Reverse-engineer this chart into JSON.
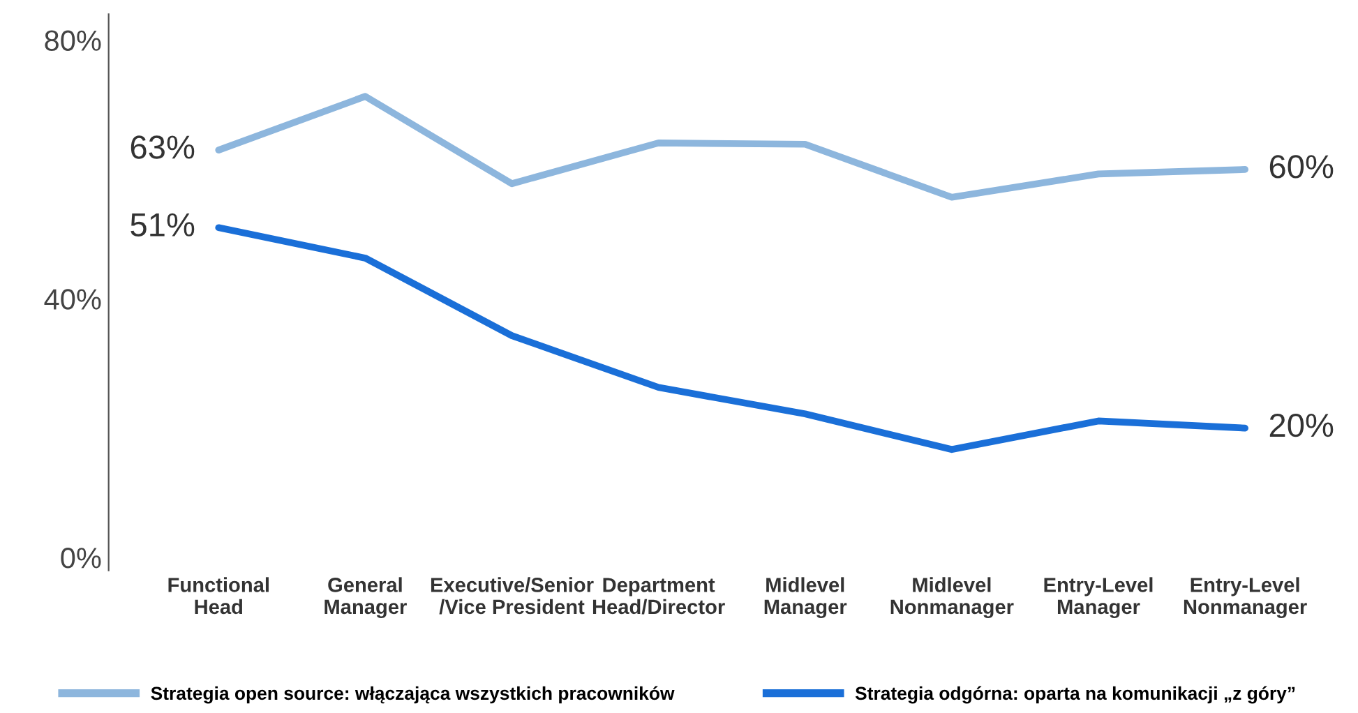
{
  "chart_data": {
    "type": "line",
    "categories": [
      "Functional\nHead",
      "General\nManager",
      "Executive/Senior\n/Vice President",
      "Department\nHead/Director",
      "Midlevel\nManager",
      "Midlevel\nNonmanager",
      "Entry-Level\nManager",
      "Entry-Level\nNonmanager"
    ],
    "series": [
      {
        "name": "Strategia open source: włączająca wszystkich pracowników",
        "color": "#8db6dd",
        "values": [
          63,
          71.3,
          57.8,
          64.1,
          63.9,
          55.7,
          59.3,
          60
        ],
        "value_labels": [
          "63%",
          null,
          null,
          null,
          null,
          null,
          null,
          "60%"
        ]
      },
      {
        "name": "Strategia odgórna: oparta na komunikacji „z góry”",
        "color": "#1a6fd8",
        "values": [
          51,
          46.3,
          34.3,
          26.3,
          22.2,
          16.7,
          21.1,
          20
        ],
        "value_labels": [
          "51%",
          null,
          null,
          null,
          null,
          null,
          null,
          "20%"
        ]
      }
    ],
    "ylim": [
      -2,
      84
    ],
    "yticks": [
      {
        "value": 0,
        "label": "0%"
      },
      {
        "value": 40,
        "label": "40%"
      },
      {
        "value": 80,
        "label": "80%"
      }
    ],
    "grid": false,
    "legend": "bottom",
    "marker": "none",
    "line_style": "solid"
  }
}
